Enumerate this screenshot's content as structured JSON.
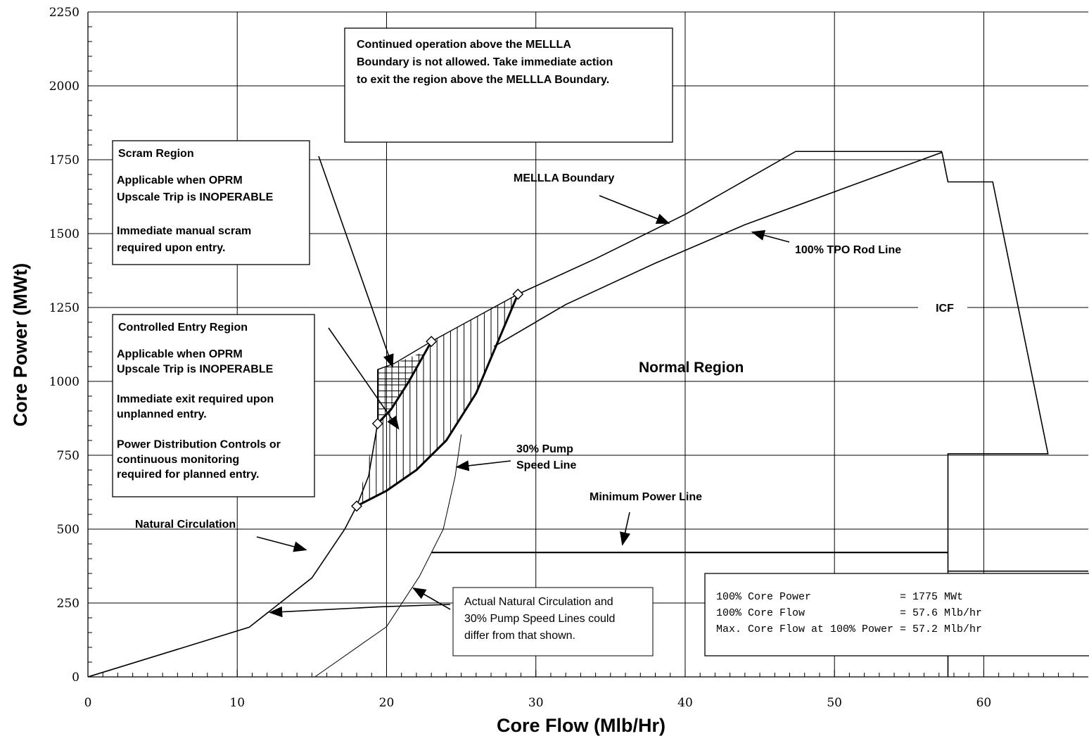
{
  "chart_data": {
    "type": "line",
    "title": "",
    "xlabel": "Core Flow (Mlb/Hr)",
    "ylabel": "Core Power (MWt)",
    "xlim": [
      0,
      67
    ],
    "ylim": [
      0,
      2250
    ],
    "x_ticks": [
      0,
      10,
      20,
      30,
      40,
      50,
      60
    ],
    "y_ticks": [
      0,
      250,
      500,
      750,
      1000,
      1250,
      1500,
      1750,
      2000,
      2250
    ],
    "grid": true,
    "series": [
      {
        "name": "MELLLA Boundary",
        "points": [
          [
            28.8,
            1295
          ],
          [
            34,
            1415
          ],
          [
            40,
            1565
          ],
          [
            47.4,
            1778
          ],
          [
            57.2,
            1778
          ]
        ]
      },
      {
        "name": "100% TPO Rod Line",
        "points": [
          [
            27.2,
            1118
          ],
          [
            32,
            1260
          ],
          [
            38,
            1400
          ],
          [
            44,
            1530
          ],
          [
            51,
            1660
          ],
          [
            57.2,
            1775
          ],
          [
            57.6,
            1675
          ],
          [
            60.6,
            1675
          ],
          [
            64.3,
            755
          ],
          [
            57.6,
            755
          ],
          [
            57.6,
            0
          ]
        ]
      },
      {
        "name": "Natural Circulation",
        "points": [
          [
            0,
            0
          ],
          [
            10.8,
            168
          ],
          [
            15,
            335
          ],
          [
            17.2,
            500
          ],
          [
            18,
            578
          ],
          [
            18.8,
            680
          ],
          [
            19.4,
            857
          ]
        ]
      },
      {
        "name": "30% Pump Speed Line",
        "points": [
          [
            15.2,
            0
          ],
          [
            20,
            170
          ],
          [
            22.2,
            340
          ],
          [
            23.8,
            500
          ],
          [
            24.6,
            680
          ],
          [
            25,
            820
          ]
        ]
      },
      {
        "name": "Minimum Power Line",
        "points": [
          [
            23,
            421
          ],
          [
            57.6,
            421
          ]
        ]
      },
      {
        "name": "ICF",
        "points": [
          [
            57.6,
            358
          ],
          [
            67,
            358
          ]
        ]
      }
    ],
    "region_boundaries": {
      "scram_region": [
        [
          19.4,
          1040
        ],
        [
          20.5,
          1060
        ],
        [
          22.5,
          1100
        ],
        [
          23,
          1135
        ],
        [
          21.5,
          1000
        ],
        [
          20.3,
          905
        ],
        [
          19.4,
          857
        ],
        [
          19.4,
          1040
        ]
      ],
      "controlled_entry_region": [
        [
          18,
          578
        ],
        [
          20,
          630
        ],
        [
          22,
          700
        ],
        [
          24,
          800
        ],
        [
          26,
          960
        ],
        [
          28.8,
          1295
        ],
        [
          23,
          1135
        ],
        [
          21.5,
          1000
        ],
        [
          20.3,
          905
        ],
        [
          19.4,
          857
        ],
        [
          18,
          578
        ]
      ],
      "points": [
        [
          18,
          578
        ],
        [
          19.4,
          857
        ],
        [
          23,
          1135
        ],
        [
          28.8,
          1295
        ]
      ]
    },
    "annotations": [
      {
        "key": "mellla_note",
        "text": "Continued operation above the MELLLA Boundary is not allowed. Take immediate action to exit the region above the MELLLA Boundary."
      },
      {
        "key": "scram",
        "text": "Scram Region"
      },
      {
        "key": "controlled",
        "text": "Controlled Entry Region"
      },
      {
        "key": "normal",
        "text": "Normal Region"
      }
    ]
  },
  "labels": {
    "mellla_note": [
      "Continued operation above the MELLLA",
      "Boundary is not allowed. Take immediate action",
      "to exit the region above the MELLLA Boundary."
    ],
    "scram_title": "Scram Region",
    "scram_lines": [
      "Applicable when OPRM",
      "Upscale Trip is INOPERABLE",
      "",
      "Immediate manual scram",
      "required upon entry."
    ],
    "controlled_title": "Controlled Entry Region",
    "controlled_lines": [
      "Applicable when OPRM",
      "Upscale Trip is INOPERABLE",
      "",
      "Immediate exit required upon",
      "unplanned entry.",
      "",
      "Power Distribution Controls or",
      "continuous monitoring",
      "required for planned entry."
    ],
    "mellla_boundary": "MELLLA Boundary",
    "tpo_rod_line": "100% TPO Rod Line",
    "icf": "ICF",
    "normal_region": "Normal Region",
    "pump_speed_line": [
      "30% Pump",
      "Speed Line"
    ],
    "minimum_power_line": "Minimum Power Line",
    "natural_circulation": "Natural Circulation",
    "actual_note": [
      "Actual Natural Circulation and",
      "30% Pump Speed Lines could",
      "differ from that shown."
    ],
    "info_box": [
      "100% Core Power              = 1775 MWt",
      "100% Core Flow               = 57.6 Mlb/hr",
      "Max. Core Flow at 100% Power = 57.2 Mlb/hr"
    ]
  }
}
